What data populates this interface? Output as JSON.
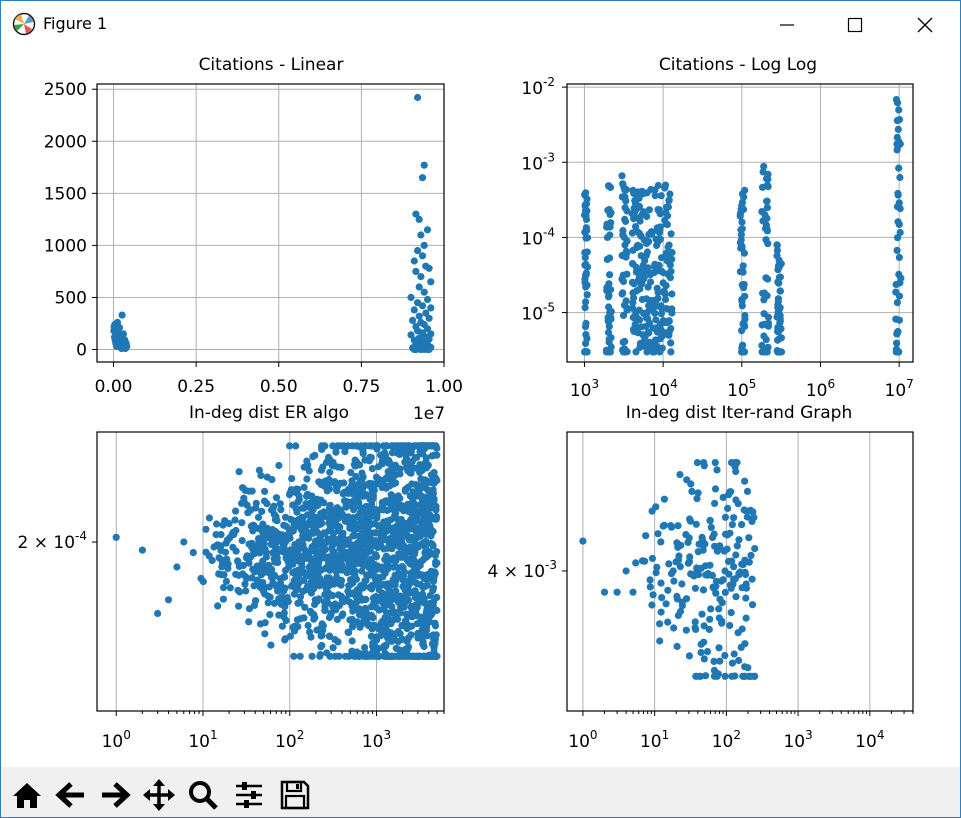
{
  "window": {
    "title": "Figure 1",
    "icons": [
      "matplotlib-logo-icon",
      "minimize-icon",
      "maximize-icon",
      "close-icon"
    ]
  },
  "toolbar": {
    "buttons": [
      "home-icon",
      "back-icon",
      "forward-icon",
      "pan-icon",
      "zoom-icon",
      "configure-subplots-icon",
      "save-icon"
    ]
  },
  "colors": {
    "marker": "#1f77b4",
    "grid": "#b0b0b0",
    "toolbar_bg": "#f0f0f0"
  },
  "chart_data": [
    {
      "type": "scatter",
      "title": "Citations - Linear",
      "xscale": "linear",
      "yscale": "linear",
      "xlim": [
        -0.05,
        1.0
      ],
      "ylim": [
        -120,
        2550
      ],
      "xticks": [
        0,
        0.25,
        0.5,
        0.75,
        1.0
      ],
      "xtick_labels": [
        "0.00",
        "0.25",
        "0.50",
        "0.75",
        "1.00"
      ],
      "x_offset_label": "1e7",
      "yticks": [
        0,
        500,
        1000,
        1500,
        2000,
        2500
      ],
      "ytick_labels": [
        "0",
        "500",
        "1000",
        "1500",
        "2000",
        "2500"
      ],
      "grid": true,
      "points": [
        [
          0.001,
          180
        ],
        [
          0.002,
          220
        ],
        [
          0.003,
          120
        ],
        [
          0.004,
          240
        ],
        [
          0.005,
          90
        ],
        [
          0.006,
          160
        ],
        [
          0.007,
          60
        ],
        [
          0.008,
          200
        ],
        [
          0.009,
          140
        ],
        [
          0.01,
          30
        ],
        [
          0.011,
          100
        ],
        [
          0.012,
          260
        ],
        [
          0.013,
          80
        ],
        [
          0.014,
          190
        ],
        [
          0.015,
          50
        ],
        [
          0.016,
          130
        ],
        [
          0.018,
          210
        ],
        [
          0.02,
          70
        ],
        [
          0.022,
          110
        ],
        [
          0.024,
          10
        ],
        [
          0.026,
          330
        ],
        [
          0.028,
          40
        ],
        [
          0.03,
          150
        ],
        [
          0.032,
          20
        ],
        [
          0.034,
          90
        ],
        [
          0.036,
          10
        ],
        [
          0.038,
          60
        ],
        [
          0.04,
          30
        ],
        [
          0.92,
          2420
        ],
        [
          0.94,
          1770
        ],
        [
          0.935,
          1650
        ],
        [
          0.915,
          1300
        ],
        [
          0.925,
          1250
        ],
        [
          0.95,
          1150
        ],
        [
          0.93,
          1100
        ],
        [
          0.94,
          1000
        ],
        [
          0.92,
          950
        ],
        [
          0.935,
          900
        ],
        [
          0.91,
          850
        ],
        [
          0.945,
          800
        ],
        [
          0.955,
          780
        ],
        [
          0.915,
          750
        ],
        [
          0.93,
          700
        ],
        [
          0.96,
          650
        ],
        [
          0.925,
          600
        ],
        [
          0.94,
          550
        ],
        [
          0.9,
          500
        ],
        [
          0.95,
          480
        ],
        [
          0.92,
          450
        ],
        [
          0.935,
          420
        ],
        [
          0.96,
          400
        ],
        [
          0.91,
          380
        ],
        [
          0.945,
          350
        ],
        [
          0.925,
          320
        ],
        [
          0.955,
          300
        ],
        [
          0.905,
          280
        ],
        [
          0.93,
          260
        ],
        [
          0.94,
          240
        ],
        [
          0.915,
          220
        ],
        [
          0.95,
          200
        ],
        [
          0.92,
          180
        ],
        [
          0.935,
          160
        ],
        [
          0.96,
          150
        ],
        [
          0.9,
          140
        ],
        [
          0.945,
          120
        ],
        [
          0.925,
          110
        ],
        [
          0.955,
          100
        ],
        [
          0.91,
          90
        ],
        [
          0.93,
          80
        ],
        [
          0.94,
          70
        ],
        [
          0.915,
          60
        ],
        [
          0.95,
          50
        ],
        [
          0.92,
          40
        ],
        [
          0.935,
          30
        ],
        [
          0.96,
          20
        ],
        [
          0.905,
          15
        ],
        [
          0.945,
          10
        ],
        [
          0.925,
          5
        ],
        [
          0.955,
          0
        ],
        [
          0.91,
          0
        ],
        [
          0.93,
          0
        ],
        [
          0.94,
          0
        ],
        [
          0.915,
          0
        ],
        [
          0.95,
          0
        ]
      ]
    },
    {
      "type": "scatter",
      "title": "Citations - Log Log",
      "xscale": "log",
      "yscale": "log",
      "xlim": [
        600,
        15000000
      ],
      "ylim": [
        2.2e-06,
        0.011
      ],
      "xticks": [
        1000,
        10000,
        100000,
        1000000,
        10000000
      ],
      "xtick_labels": [
        "10^3",
        "10^4",
        "10^5",
        "10^6",
        "10^7"
      ],
      "yticks": [
        1e-05,
        0.0001,
        0.001,
        0.01
      ],
      "ytick_labels": [
        "10^-5",
        "10^-4",
        "10^-3",
        "10^-2"
      ],
      "grid": true,
      "clusters": [
        {
          "x": [
            1000,
            1100
          ],
          "y": [
            3e-06,
            0.0004
          ]
        },
        {
          "x": [
            1900,
            2200
          ],
          "y": [
            3e-06,
            0.0005
          ]
        },
        {
          "x": [
            3000,
            3500
          ],
          "y": [
            3e-06,
            0.0007
          ]
        },
        {
          "x": [
            4000,
            13000
          ],
          "y": [
            3e-06,
            0.0005
          ]
        },
        {
          "x": [
            95000,
            110000
          ],
          "y": [
            3e-06,
            0.0007
          ]
        },
        {
          "x": [
            180000,
            220000
          ],
          "y": [
            3e-06,
            0.0009
          ]
        },
        {
          "x": [
            280000,
            320000
          ],
          "y": [
            3e-06,
            8e-05
          ]
        },
        {
          "x": [
            9000000,
            10500000
          ],
          "y": [
            3e-06,
            0.007
          ]
        }
      ]
    },
    {
      "type": "scatter",
      "title": "In-deg dist ER algo",
      "xscale": "log",
      "yscale": "log",
      "xlim": [
        0.6,
        6000
      ],
      "xticks": [
        1,
        10,
        100,
        1000
      ],
      "xtick_labels": [
        "10^0",
        "10^1",
        "10^2",
        "10^3"
      ],
      "ytick_labels": [
        "2 × 10^-4"
      ],
      "grid": true,
      "points": [
        [
          1,
          0.000203
        ],
        [
          2,
          0.000195
        ],
        [
          3,
          0.00016
        ],
        [
          4,
          0.000167
        ],
        [
          5,
          0.000185
        ],
        [
          6,
          0.0002
        ]
      ],
      "cloud": {
        "x": [
          6,
          5000
        ],
        "y": [
          0.00014,
          0.00027
        ]
      }
    },
    {
      "type": "scatter",
      "title": "In-deg dist Iter-rand Graph",
      "xscale": "log",
      "yscale": "log",
      "xlim": [
        0.6,
        40000
      ],
      "xticks": [
        1,
        10,
        100,
        1000,
        10000
      ],
      "xtick_labels": [
        "10^0",
        "10^1",
        "10^2",
        "10^3",
        "10^4"
      ],
      "ytick_labels": [
        "4 × 10^-3"
      ],
      "grid": true,
      "points": [
        [
          1,
          0.0043
        ],
        [
          2,
          0.0038
        ],
        [
          3,
          0.0038
        ],
        [
          4,
          0.004
        ],
        [
          5,
          0.0038
        ]
      ],
      "cloud": {
        "x": [
          5,
          250
        ],
        "y": [
          0.0031,
          0.0052
        ]
      }
    }
  ]
}
